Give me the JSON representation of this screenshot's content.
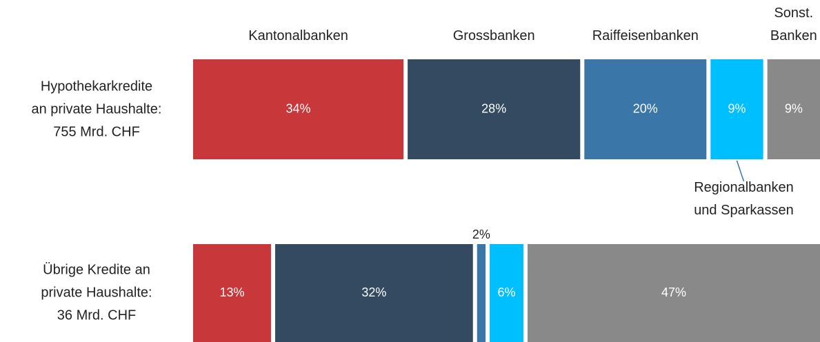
{
  "chart_data": {
    "type": "stacked-bar-horizontal",
    "categories": [
      "Hypothekarkredite\nan private Haushalte:\n755 Mrd. CHF",
      "Übrige Kredite an\nprivate Haushalte:\n36 Mrd. CHF"
    ],
    "series": [
      {
        "name": "Kantonalbanken",
        "color": "#c8373a",
        "values": [
          34,
          13
        ],
        "value_labels": [
          "34%",
          "13%"
        ]
      },
      {
        "name": "Grossbanken",
        "color": "#334a60",
        "values": [
          28,
          32
        ],
        "value_labels": [
          "28%",
          "32%"
        ]
      },
      {
        "name": "Raiffeisenbanken",
        "color": "#3a76a8",
        "values": [
          20,
          2
        ],
        "value_labels": [
          "20%",
          "2%"
        ]
      },
      {
        "name": "Regionalbanken\nund Sparkassen",
        "color": "#00bfff",
        "values": [
          9,
          6
        ],
        "value_labels": [
          "9%",
          "6%"
        ]
      },
      {
        "name": "Sonst.\nBanken",
        "color": "#898989",
        "values": [
          9,
          47
        ],
        "value_labels": [
          "9%",
          "47%"
        ]
      }
    ]
  }
}
